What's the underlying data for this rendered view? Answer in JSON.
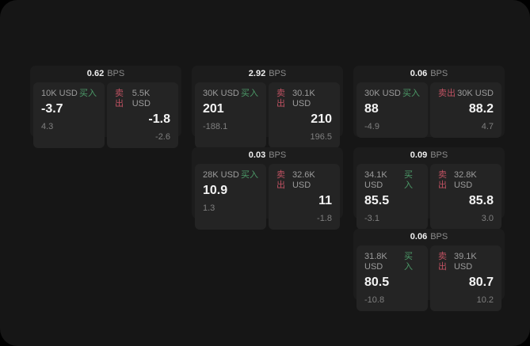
{
  "colors": {
    "window_bg": "#161616",
    "card_bg": "#1c1c1c",
    "panel_bg": "#242424",
    "buy_green": "#4c9a68",
    "sell_red": "#c05262"
  },
  "labels": {
    "bps_unit": "BPS",
    "buy": "买入",
    "sell": "卖出"
  },
  "cards": [
    {
      "row": 1,
      "col": 1,
      "bps_value": "0.62",
      "buy": {
        "amount": "10K USD",
        "price": "-3.7",
        "delta": "4.3"
      },
      "sell": {
        "amount": "5.5K USD",
        "price": "-1.8",
        "delta": "-2.6"
      }
    },
    {
      "row": 1,
      "col": 2,
      "bps_value": "2.92",
      "buy": {
        "amount": "30K USD",
        "price": "201",
        "delta": "-188.1"
      },
      "sell": {
        "amount": "30.1K USD",
        "price": "210",
        "delta": "196.5"
      }
    },
    {
      "row": 1,
      "col": 3,
      "bps_value": "0.06",
      "buy": {
        "amount": "30K USD",
        "price": "88",
        "delta": "-4.9"
      },
      "sell": {
        "amount": "30K USD",
        "price": "88.2",
        "delta": "4.7"
      }
    },
    {
      "row": 2,
      "col": 2,
      "bps_value": "0.03",
      "buy": {
        "amount": "28K USD",
        "price": "10.9",
        "delta": "1.3"
      },
      "sell": {
        "amount": "32.6K USD",
        "price": "11",
        "delta": "-1.8"
      }
    },
    {
      "row": 2,
      "col": 3,
      "bps_value": "0.09",
      "buy": {
        "amount": "34.1K USD",
        "price": "85.5",
        "delta": "-3.1"
      },
      "sell": {
        "amount": "32.8K USD",
        "price": "85.8",
        "delta": "3.0"
      }
    },
    {
      "row": 3,
      "col": 3,
      "bps_value": "0.06",
      "buy": {
        "amount": "31.8K USD",
        "price": "80.5",
        "delta": "-10.8"
      },
      "sell": {
        "amount": "39.1K USD",
        "price": "80.7",
        "delta": "10.2"
      }
    }
  ]
}
